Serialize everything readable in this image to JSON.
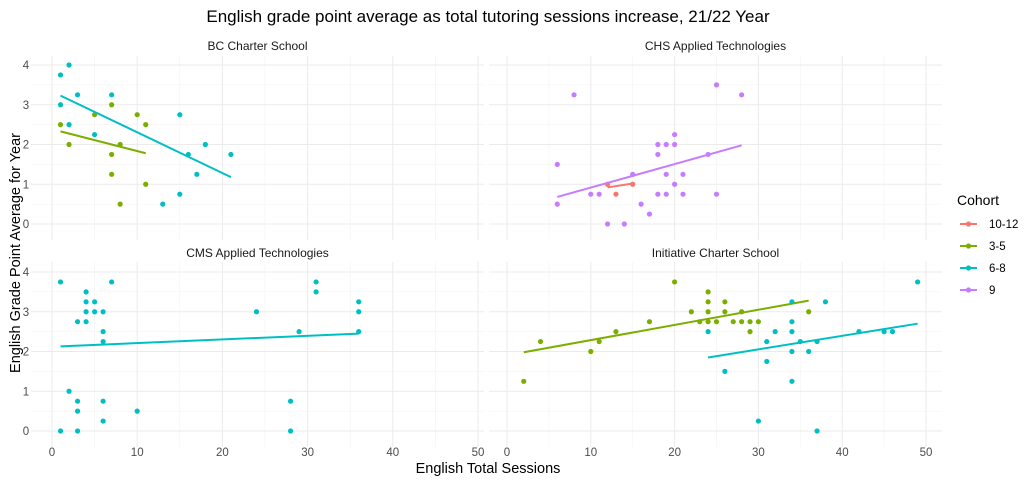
{
  "chart_data": {
    "type": "scatter",
    "title": "English grade point average as total tutoring sessions increase, 21/22 Year",
    "xlabel": "English Total Sessions",
    "ylabel": "English Grade Point Average for Year",
    "xlim": [
      0,
      50
    ],
    "ylim": [
      0,
      4
    ],
    "x_ticks": [
      "0",
      "10",
      "20",
      "30",
      "40",
      "50"
    ],
    "y_ticks": [
      "0",
      "1",
      "2",
      "3",
      "4"
    ],
    "grid": true,
    "legend": {
      "title": "Cohort",
      "position": "right",
      "entries": [
        {
          "name": "10-12",
          "color": "#F8766D"
        },
        {
          "name": "3-5",
          "color": "#7CAE00"
        },
        {
          "name": "6-8",
          "color": "#00BFC4"
        },
        {
          "name": "9",
          "color": "#C77CFF"
        }
      ]
    },
    "panels": [
      {
        "title": "BC Charter School",
        "series": [
          {
            "name": "3-5",
            "points": [
              [
                1,
                2.5
              ],
              [
                2,
                2
              ],
              [
                5,
                2.75
              ],
              [
                7,
                3
              ],
              [
                7,
                1.75
              ],
              [
                7,
                1.25
              ],
              [
                8,
                2
              ],
              [
                8,
                0.5
              ],
              [
                10,
                2.75
              ],
              [
                11,
                2.5
              ],
              [
                11,
                1
              ]
            ],
            "fit": [
              [
                1,
                2.33
              ],
              [
                11,
                1.78
              ]
            ]
          },
          {
            "name": "6-8",
            "points": [
              [
                1,
                3.75
              ],
              [
                1,
                3
              ],
              [
                2,
                4
              ],
              [
                2,
                2.5
              ],
              [
                3,
                3.25
              ],
              [
                5,
                2.25
              ],
              [
                7,
                3.25
              ],
              [
                13,
                0.5
              ],
              [
                15,
                2.75
              ],
              [
                15,
                0.75
              ],
              [
                16,
                1.75
              ],
              [
                17,
                1.25
              ],
              [
                18,
                2
              ],
              [
                21,
                1.75
              ]
            ],
            "fit": [
              [
                1,
                3.23
              ],
              [
                21,
                1.18
              ]
            ]
          }
        ]
      },
      {
        "title": "CHS Applied Technologies",
        "series": [
          {
            "name": "10-12",
            "points": [
              [
                12,
                1
              ],
              [
                13,
                0.75
              ],
              [
                15,
                1
              ]
            ],
            "fit": [
              [
                12,
                0.92
              ],
              [
                15,
                1.02
              ]
            ]
          },
          {
            "name": "9",
            "points": [
              [
                6,
                1.5
              ],
              [
                6,
                0.5
              ],
              [
                8,
                3.25
              ],
              [
                10,
                0.75
              ],
              [
                11,
                0.75
              ],
              [
                12,
                0
              ],
              [
                14,
                0
              ],
              [
                15,
                1.25
              ],
              [
                16,
                0.5
              ],
              [
                17,
                0.25
              ],
              [
                18,
                2
              ],
              [
                18,
                1.75
              ],
              [
                18,
                0.75
              ],
              [
                19,
                2
              ],
              [
                19,
                0.75
              ],
              [
                19,
                1.25
              ],
              [
                20,
                2.25
              ],
              [
                20,
                2
              ],
              [
                20,
                1
              ],
              [
                21,
                1.25
              ],
              [
                21,
                0.75
              ],
              [
                24,
                1.75
              ],
              [
                25,
                3.5
              ],
              [
                25,
                0.75
              ],
              [
                28,
                3.25
              ]
            ],
            "fit": [
              [
                6,
                0.68
              ],
              [
                28,
                1.98
              ]
            ]
          }
        ]
      },
      {
        "title": "CMS Applied Technologies",
        "series": [
          {
            "name": "6-8",
            "points": [
              [
                1,
                3.75
              ],
              [
                1,
                0
              ],
              [
                2,
                1
              ],
              [
                3,
                2.75
              ],
              [
                3,
                0.75
              ],
              [
                3,
                0.5
              ],
              [
                3,
                0
              ],
              [
                4,
                3.5
              ],
              [
                4,
                3.25
              ],
              [
                4,
                3
              ],
              [
                4,
                2.75
              ],
              [
                5,
                3.25
              ],
              [
                5,
                3
              ],
              [
                6,
                3
              ],
              [
                6,
                2.5
              ],
              [
                6,
                2.25
              ],
              [
                6,
                0.75
              ],
              [
                6,
                0.25
              ],
              [
                7,
                3.75
              ],
              [
                10,
                0.5
              ],
              [
                24,
                3
              ],
              [
                28,
                0.75
              ],
              [
                28,
                0
              ],
              [
                29,
                2.5
              ],
              [
                31,
                3.75
              ],
              [
                31,
                3.5
              ],
              [
                36,
                3.25
              ],
              [
                36,
                3
              ],
              [
                36,
                2.5
              ]
            ],
            "fit": [
              [
                1,
                2.13
              ],
              [
                36,
                2.45
              ]
            ]
          }
        ]
      },
      {
        "title": "Initiative Charter School",
        "series": [
          {
            "name": "3-5",
            "points": [
              [
                2,
                1.25
              ],
              [
                4,
                2.25
              ],
              [
                10,
                2
              ],
              [
                11,
                2.25
              ],
              [
                13,
                2.5
              ],
              [
                17,
                2.75
              ],
              [
                20,
                3.75
              ],
              [
                22,
                3
              ],
              [
                23,
                2.75
              ],
              [
                24,
                3.5
              ],
              [
                24,
                3.25
              ],
              [
                24,
                3
              ],
              [
                24,
                2.75
              ],
              [
                25,
                2.75
              ],
              [
                26,
                3.25
              ],
              [
                26,
                3
              ],
              [
                27,
                2.75
              ],
              [
                28,
                3
              ],
              [
                28,
                2.75
              ],
              [
                29,
                2.5
              ],
              [
                29,
                2.75
              ],
              [
                30,
                2.75
              ],
              [
                36,
                3
              ]
            ],
            "fit": [
              [
                2,
                1.98
              ],
              [
                36,
                3.28
              ]
            ]
          },
          {
            "name": "6-8",
            "points": [
              [
                24,
                2.5
              ],
              [
                26,
                1.5
              ],
              [
                30,
                0.25
              ],
              [
                31,
                2.25
              ],
              [
                31,
                1.75
              ],
              [
                32,
                2.5
              ],
              [
                34,
                3.25
              ],
              [
                34,
                2.75
              ],
              [
                34,
                2.5
              ],
              [
                34,
                2
              ],
              [
                34,
                1.25
              ],
              [
                35,
                2.25
              ],
              [
                36,
                2
              ],
              [
                37,
                2.25
              ],
              [
                37,
                0
              ],
              [
                38,
                3.25
              ],
              [
                42,
                2.5
              ],
              [
                45,
                2.5
              ],
              [
                46,
                2.5
              ],
              [
                49,
                3.75
              ]
            ],
            "fit": [
              [
                24,
                1.85
              ],
              [
                49,
                2.7
              ]
            ]
          }
        ]
      }
    ]
  }
}
